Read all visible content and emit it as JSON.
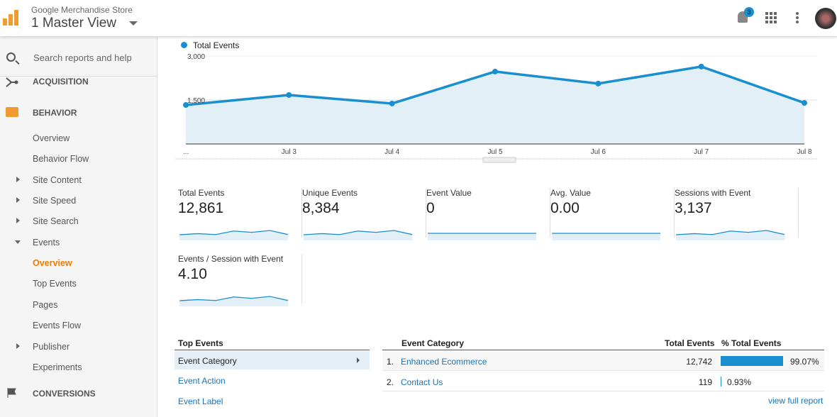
{
  "header": {
    "account": "Google Merchandise Store",
    "view": "1 Master View",
    "notifications": "3"
  },
  "sidebar": {
    "search_placeholder": "Search reports and help",
    "sections": {
      "acquisition": "ACQUISITION",
      "behavior": "BEHAVIOR",
      "conversions": "CONVERSIONS"
    },
    "items": [
      {
        "label": "Overview"
      },
      {
        "label": "Behavior Flow"
      },
      {
        "label": "Site Content"
      },
      {
        "label": "Site Speed"
      },
      {
        "label": "Site Search"
      },
      {
        "label": "Events"
      },
      {
        "label": "Overview"
      },
      {
        "label": "Top Events"
      },
      {
        "label": "Pages"
      },
      {
        "label": "Events Flow"
      },
      {
        "label": "Publisher"
      },
      {
        "label": "Experiments"
      }
    ]
  },
  "chart_data": {
    "type": "area",
    "series": [
      {
        "name": "Total Events",
        "values": [
          1330,
          1670,
          1380,
          2470,
          2060,
          2640,
          1400
        ]
      }
    ],
    "categories": [
      "...",
      "Jul 3",
      "Jul 4",
      "Jul 5",
      "Jul 6",
      "Jul 7",
      "Jul 8"
    ],
    "yticks": [
      "3,000",
      "1,500"
    ],
    "ylim": [
      0,
      3000
    ],
    "color": "#1a8fd0"
  },
  "metrics": [
    {
      "label": "Total Events",
      "value": "12,861"
    },
    {
      "label": "Unique Events",
      "value": "8,384"
    },
    {
      "label": "Event Value",
      "value": "0"
    },
    {
      "label": "Avg. Value",
      "value": "0.00"
    },
    {
      "label": "Sessions with Event",
      "value": "3,137"
    },
    {
      "label": "Events / Session with Event",
      "value": "4.10"
    }
  ],
  "top_events": {
    "title": "Top Events",
    "dims": [
      "Event Category",
      "Event Action",
      "Event Label"
    ]
  },
  "table": {
    "headers": [
      "Event Category",
      "Total Events",
      "% Total Events"
    ],
    "rows": [
      {
        "idx": "1.",
        "name": "Enhanced Ecommerce",
        "total": "12,742",
        "pct": "99.07%",
        "frac": 0.9907
      },
      {
        "idx": "2.",
        "name": "Contact Us",
        "total": "119",
        "pct": "0.93%",
        "frac": 0.0093
      }
    ],
    "full_report": "view full report"
  }
}
